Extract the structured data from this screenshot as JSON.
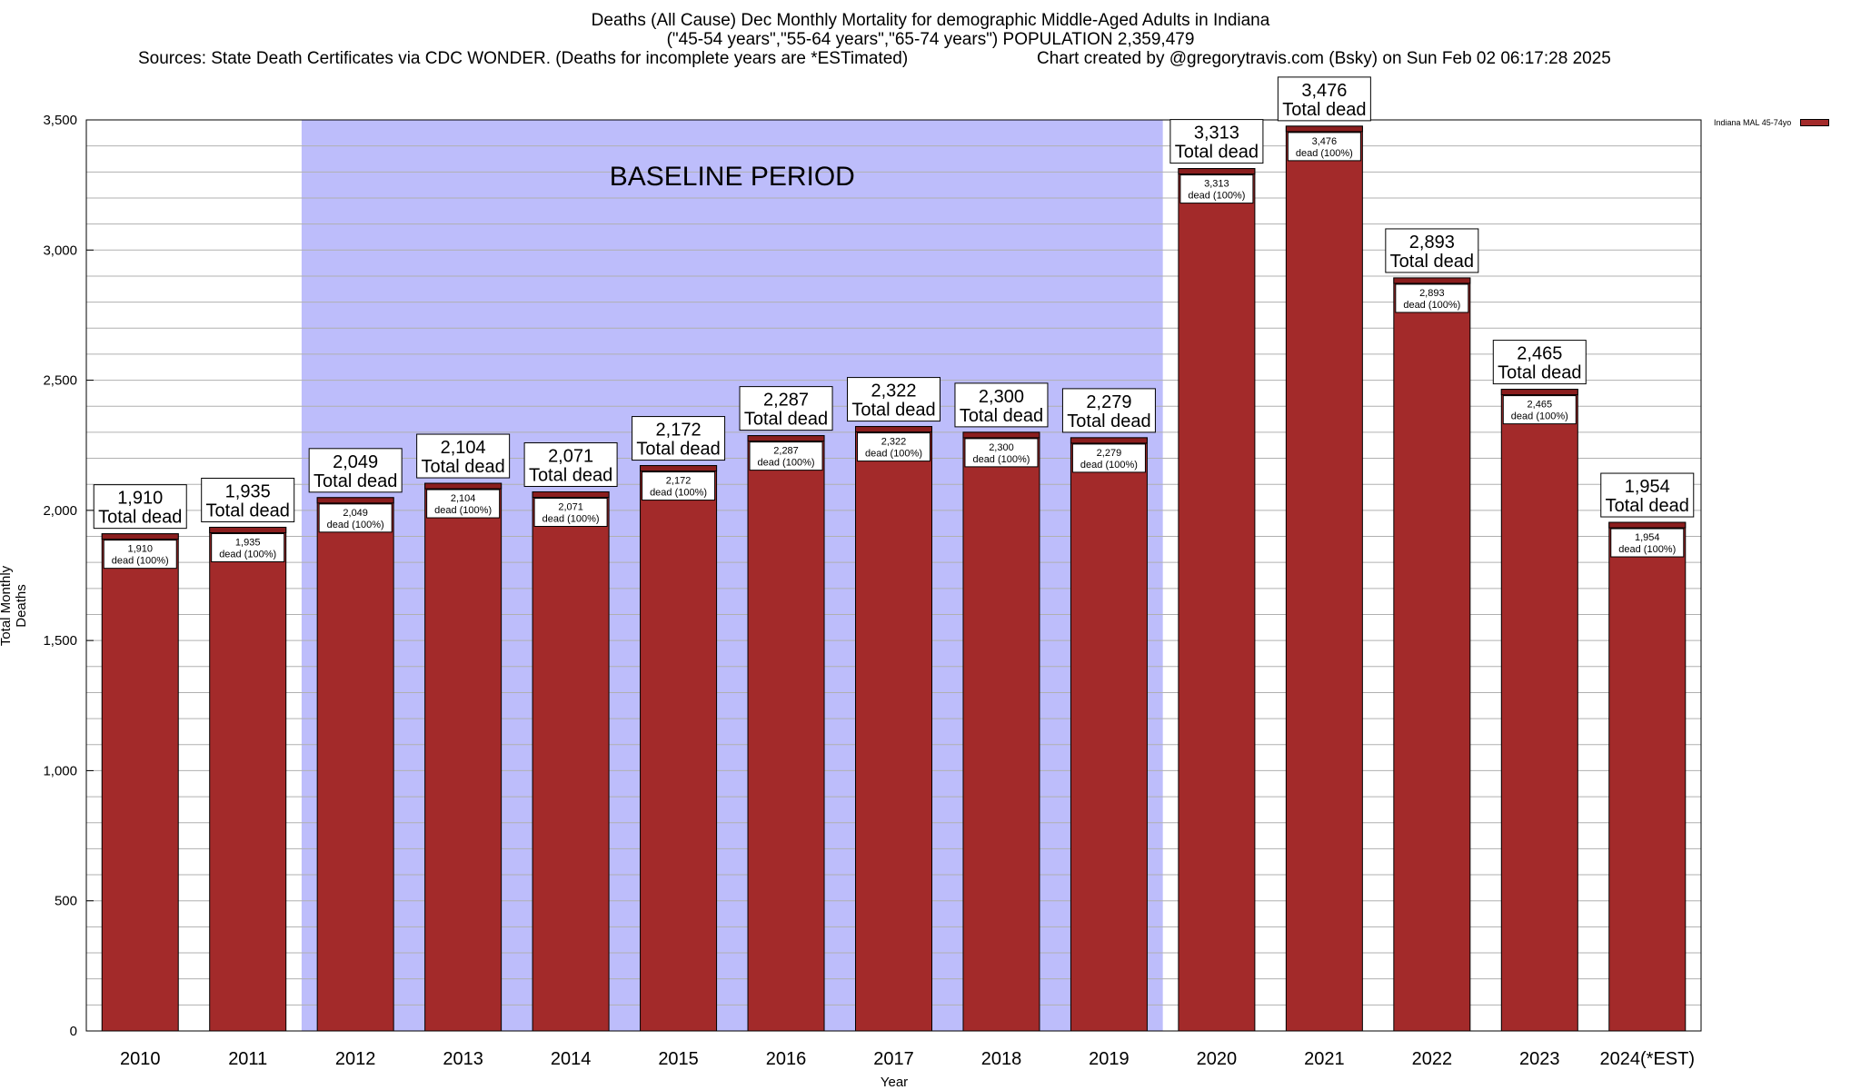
{
  "title": {
    "line1": "Deaths (All Cause) Dec Monthly Mortality for demographic Middle-Aged Adults in Indiana",
    "line2": "(\"45-54 years\",\"55-64 years\",\"65-74 years\") POPULATION 2,359,479",
    "source": "Sources: State Death Certificates via CDC WONDER. (Deaths for incomplete years are *ESTimated)",
    "credit": "Chart created by @gregorytravis.com (Bsky) on Sun Feb 02 06:17:28 2025"
  },
  "legend": {
    "label": "Indiana MAL 45-74yo",
    "color": "#a32a2a"
  },
  "colors": {
    "bar": "#a32a2a",
    "bar_top": "#8b1e1e",
    "baseline": "#bdbdfb",
    "grid": "#b0b0b0"
  },
  "chart_data": {
    "type": "bar",
    "xlabel": "Year",
    "ylabel": "Total Monthly Deaths",
    "ylim": [
      0,
      3500
    ],
    "yticks": [
      0,
      500,
      1000,
      1500,
      2000,
      2500,
      3000,
      3500
    ],
    "ytick_labels": [
      "0",
      "500",
      "1,000",
      "1,500",
      "2,000",
      "2,500",
      "3,000",
      "3,500"
    ],
    "grid": true,
    "legend_position": "top-right",
    "categories": [
      "2010",
      "2011",
      "2012",
      "2013",
      "2014",
      "2015",
      "2016",
      "2017",
      "2018",
      "2019",
      "2020",
      "2021",
      "2022",
      "2023",
      "2024(*EST)"
    ],
    "series": [
      {
        "name": "Indiana MAL 45-74yo",
        "values": [
          1910,
          1935,
          2049,
          2104,
          2071,
          2172,
          2287,
          2322,
          2300,
          2279,
          3313,
          3476,
          2893,
          2465,
          1954
        ]
      }
    ],
    "top_labels": [
      "1,910",
      "1,935",
      "2,049",
      "2,104",
      "2,071",
      "2,172",
      "2,287",
      "2,322",
      "2,300",
      "2,279",
      "3,313",
      "3,476",
      "2,893",
      "2,465",
      "1,954"
    ],
    "top_label_suffix": "Total dead",
    "inner_labels": [
      "1,910",
      "1,935",
      "2,049",
      "2,104",
      "2,071",
      "2,172",
      "2,287",
      "2,322",
      "2,300",
      "2,279",
      "3,313",
      "3,476",
      "2,893",
      "2,465",
      "1,954"
    ],
    "inner_label_suffix": "dead (100%)",
    "baseline_period": {
      "label": "BASELINE PERIOD",
      "from": "2012",
      "to": "2019"
    }
  }
}
